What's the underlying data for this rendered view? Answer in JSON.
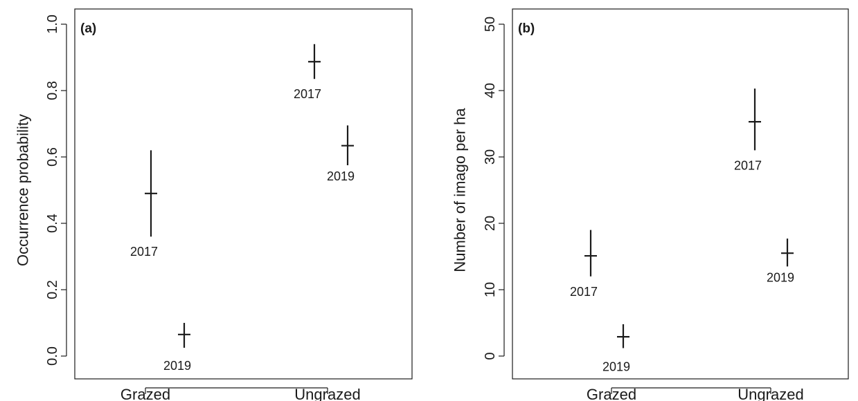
{
  "chart_data": [
    {
      "type": "scatter",
      "panel_label": "(a)",
      "ylabel": "Occurrence probability",
      "xlabel": "",
      "categories": [
        "Grazed",
        "Ungrazed"
      ],
      "ylim": [
        0,
        1
      ],
      "yticks": [
        "0.0",
        "0.2",
        "0.4",
        "0.6",
        "0.8",
        "1.0"
      ],
      "series": [
        {
          "values": [
            {
              "group": "Grazed",
              "offset": -0.12,
              "year": "2017",
              "mean": 0.49,
              "lower": 0.36,
              "upper": 0.62
            },
            {
              "group": "Grazed",
              "offset": 0.12,
              "year": "2019",
              "mean": 0.065,
              "lower": 0.025,
              "upper": 0.1
            },
            {
              "group": "Ungrazed",
              "offset": -0.12,
              "year": "2017",
              "mean": 0.887,
              "lower": 0.835,
              "upper": 0.94
            },
            {
              "group": "Ungrazed",
              "offset": 0.12,
              "year": "2019",
              "mean": 0.634,
              "lower": 0.575,
              "upper": 0.695
            }
          ]
        }
      ]
    },
    {
      "type": "scatter",
      "panel_label": "(b)",
      "ylabel": "Number of imago per ha",
      "xlabel": "",
      "categories": [
        "Grazed",
        "Ungrazed"
      ],
      "ylim": [
        0,
        50
      ],
      "yticks": [
        "0",
        "10",
        "20",
        "30",
        "40",
        "50"
      ],
      "series": [
        {
          "values": [
            {
              "group": "Grazed",
              "offset": -0.12,
              "year": "2017",
              "mean": 15.1,
              "lower": 12.0,
              "upper": 19.0
            },
            {
              "group": "Grazed",
              "offset": 0.12,
              "year": "2019",
              "mean": 2.9,
              "lower": 1.2,
              "upper": 4.8
            },
            {
              "group": "Ungrazed",
              "offset": -0.12,
              "year": "2017",
              "mean": 35.3,
              "lower": 31.0,
              "upper": 40.3
            },
            {
              "group": "Ungrazed",
              "offset": 0.12,
              "year": "2019",
              "mean": 15.5,
              "lower": 13.5,
              "upper": 17.7
            }
          ]
        }
      ]
    }
  ]
}
